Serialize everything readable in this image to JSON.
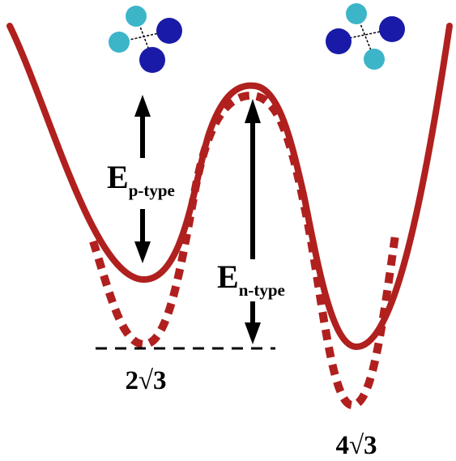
{
  "labels": {
    "p_type_main": "E",
    "p_type_sub": "p-type",
    "n_type_main": "E",
    "n_type_sub": "n-type",
    "left_min": "2√3",
    "right_min": "4√3"
  },
  "colors": {
    "curve": "#b0201e",
    "arrow": "#000000",
    "baseline": "#000000",
    "atom_light": "#3cb5c9",
    "atom_dark": "#1a1aa8"
  },
  "icons": {
    "left_cluster": "molecule-cluster-icon",
    "right_cluster": "molecule-cluster-icon"
  }
}
